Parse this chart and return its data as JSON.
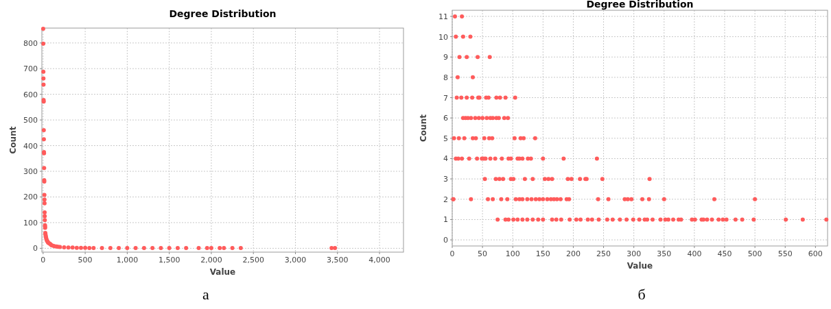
{
  "chart_data": [
    {
      "type": "scatter",
      "title": "Degree Distribution",
      "xlabel": "Value",
      "ylabel": "Count",
      "annotations": [
        "а"
      ],
      "grid": true,
      "marker": "circle",
      "xlim": [
        -15,
        4285
      ],
      "ylim": [
        -15,
        858
      ],
      "xticks": [
        0,
        500,
        {
          "value": 1000,
          "label": "1,000"
        },
        {
          "value": 1500,
          "label": "1,500"
        },
        {
          "value": 2000,
          "label": "2,000"
        },
        {
          "value": 2500,
          "label": "2,500"
        },
        {
          "value": 3000,
          "label": "3,000"
        },
        {
          "value": 3500,
          "label": "3,500"
        },
        {
          "value": 4000,
          "label": "4,000"
        }
      ],
      "yticks": [
        0,
        100,
        200,
        300,
        400,
        500,
        600,
        700,
        800
      ],
      "x": [
        1,
        2,
        3,
        4,
        5,
        6,
        7,
        8,
        9,
        10,
        11,
        12,
        13,
        14,
        15,
        16,
        17,
        18,
        19,
        20,
        22,
        23,
        24,
        26,
        28,
        30,
        33,
        36,
        40,
        45,
        50,
        55,
        60,
        70,
        80,
        90,
        100,
        120,
        140,
        160,
        180,
        200,
        250,
        300,
        350,
        400,
        450,
        500,
        550,
        600,
        700,
        800,
        900,
        1000,
        1100,
        1200,
        1300,
        1400,
        1500,
        1600,
        1700,
        1850,
        1950,
        2000,
        2100,
        2150,
        2250,
        2350,
        3430,
        3470
      ],
      "series": [
        {
          "color": "#ff5b5b",
          "values": [
            855,
            797,
            688,
            662,
            638,
            578,
            572,
            460,
            425,
            375,
            370,
            313,
            265,
            260,
            208,
            190,
            175,
            140,
            125,
            110,
            90,
            85,
            80,
            60,
            55,
            50,
            45,
            40,
            35,
            30,
            28,
            25,
            22,
            20,
            18,
            15,
            12,
            10,
            8,
            7,
            6,
            5,
            4,
            3,
            3,
            2,
            2,
            2,
            1,
            1,
            1,
            1,
            1,
            1,
            1,
            1,
            1,
            1,
            1,
            1,
            1,
            1,
            1,
            1,
            1,
            1,
            1,
            1,
            1,
            1
          ]
        }
      ]
    },
    {
      "type": "scatter",
      "title": "Degree Distribution",
      "xlabel": "Value",
      "ylabel": "Count",
      "annotations": [
        "б"
      ],
      "grid": true,
      "marker": "circle",
      "xlim": [
        0,
        620
      ],
      "ylim": [
        -0.3,
        11.3
      ],
      "xticks": [
        0,
        50,
        100,
        150,
        200,
        250,
        300,
        350,
        400,
        450,
        500,
        550,
        600
      ],
      "yticks": [
        0,
        1,
        2,
        3,
        4,
        5,
        6,
        7,
        8,
        9,
        10,
        11
      ],
      "x": [
        4.5,
        16,
        6,
        18,
        30,
        12,
        24,
        42,
        62,
        9,
        34,
        7.5,
        15,
        24,
        33,
        43,
        45,
        56,
        60,
        73,
        79,
        88,
        104,
        18,
        22,
        26,
        31,
        38,
        44,
        50,
        57,
        63,
        67,
        73,
        77,
        86,
        92,
        3,
        11,
        20,
        34,
        39,
        53,
        61,
        66,
        103,
        113,
        118,
        137,
        6,
        10,
        16,
        28,
        41,
        49,
        52,
        55,
        63,
        71,
        82,
        93,
        97,
        108,
        111,
        116,
        125,
        130,
        150,
        184,
        239,
        54,
        72,
        78,
        84,
        97,
        101,
        120,
        133,
        153,
        159,
        165,
        191,
        197,
        211,
        220,
        222,
        248,
        326,
        2,
        31,
        59,
        81,
        91,
        105,
        111,
        116,
        124,
        131,
        138,
        144,
        150,
        157,
        163,
        168,
        173,
        179,
        189,
        193,
        241,
        258,
        285,
        290,
        296,
        314,
        325,
        350,
        433,
        500,
        1.5,
        67,
        75,
        88,
        93,
        101,
        108,
        116,
        124,
        133,
        142,
        150,
        165,
        172,
        180,
        194,
        205,
        212,
        224,
        231,
        242,
        256,
        265,
        277,
        288,
        299,
        309,
        318,
        322,
        331,
        344,
        352,
        357,
        365,
        374,
        378,
        396,
        401,
        412,
        415,
        421,
        429,
        440,
        447,
        453,
        468,
        479,
        498,
        551,
        579,
        618
      ],
      "series": [
        {
          "color": "#ff5b5b",
          "values": [
            11,
            11,
            10,
            10,
            10,
            9,
            9,
            9,
            9,
            8,
            8,
            7,
            7,
            7,
            7,
            7,
            7,
            7,
            7,
            7,
            7,
            7,
            7,
            6,
            6,
            6,
            6,
            6,
            6,
            6,
            6,
            6,
            6,
            6,
            6,
            6,
            6,
            5,
            5,
            5,
            5,
            5,
            5,
            5,
            5,
            5,
            5,
            5,
            5,
            4,
            4,
            4,
            4,
            4,
            4,
            4,
            4,
            4,
            4,
            4,
            4,
            4,
            4,
            4,
            4,
            4,
            4,
            4,
            4,
            4,
            3,
            3,
            3,
            3,
            3,
            3,
            3,
            3,
            3,
            3,
            3,
            3,
            3,
            3,
            3,
            3,
            3,
            3,
            2,
            2,
            2,
            2,
            2,
            2,
            2,
            2,
            2,
            2,
            2,
            2,
            2,
            2,
            2,
            2,
            2,
            2,
            2,
            2,
            2,
            2,
            2,
            2,
            2,
            2,
            2,
            2,
            2,
            2,
            2,
            2,
            1,
            1,
            1,
            1,
            1,
            1,
            1,
            1,
            1,
            1,
            1,
            1,
            1,
            1,
            1,
            1,
            1,
            1,
            1,
            1,
            1,
            1,
            1,
            1,
            1,
            1,
            1,
            1,
            1,
            1,
            1,
            1,
            1,
            1,
            1,
            1,
            1,
            1,
            1,
            1,
            1,
            1,
            1,
            1,
            1,
            1,
            1,
            1,
            1
          ]
        }
      ]
    }
  ]
}
